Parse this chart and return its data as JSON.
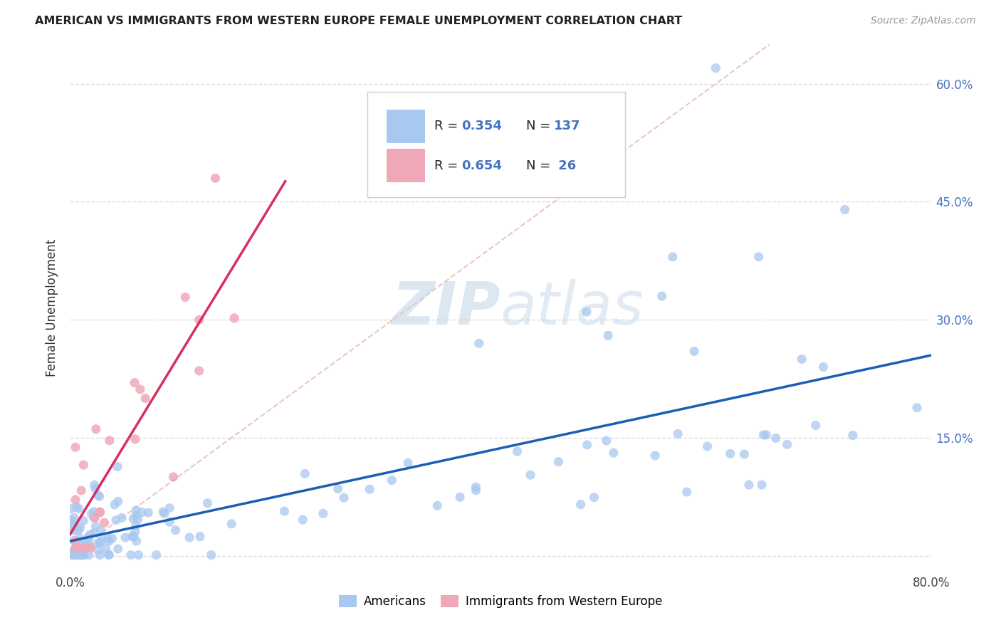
{
  "title": "AMERICAN VS IMMIGRANTS FROM WESTERN EUROPE FEMALE UNEMPLOYMENT CORRELATION CHART",
  "source": "Source: ZipAtlas.com",
  "ylabel": "Female Unemployment",
  "xlim": [
    0.0,
    0.8
  ],
  "ylim": [
    -0.02,
    0.65
  ],
  "yticks": [
    0.0,
    0.15,
    0.3,
    0.45,
    0.6
  ],
  "ytick_labels": [
    "",
    "15.0%",
    "30.0%",
    "45.0%",
    "60.0%"
  ],
  "xticks": [
    0.0,
    0.2,
    0.4,
    0.6,
    0.8
  ],
  "xtick_labels": [
    "0.0%",
    "",
    "",
    "",
    "80.0%"
  ],
  "color_american": "#a8c8f0",
  "color_immigrant": "#f0a8b8",
  "color_line_american": "#1a5fb4",
  "color_line_immigrant": "#d63060",
  "color_diag": "#e8c0c0",
  "background_color": "#ffffff",
  "grid_color": "#dddddd",
  "legend_label1": "Americans",
  "legend_label2": "Immigrants from Western Europe"
}
